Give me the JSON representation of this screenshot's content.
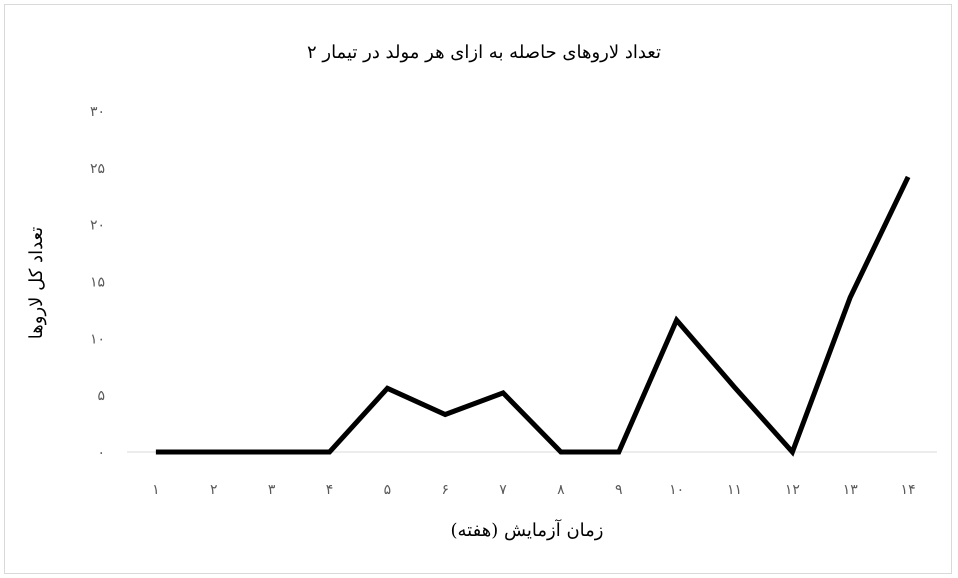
{
  "chart_data": {
    "type": "line",
    "title": "تعداد لاروهای حاصله به ازای هر مولد در تیمار ۲",
    "xlabel": "زمان آزمایش (هفته)",
    "ylabel": "تعداد کل لاروها",
    "categories": [
      "۱",
      "۲",
      "۳",
      "۴",
      "۵",
      "۶",
      "۷",
      "۸",
      "۹",
      "۱۰",
      "۱۱",
      "۱۲",
      "۱۳",
      "۱۴"
    ],
    "y_tick_labels": [
      "۰",
      "۵",
      "۱۰",
      "۱۵",
      "۲۰",
      "۲۵",
      "۳۰"
    ],
    "ylim": [
      0,
      30
    ],
    "series": [
      {
        "values": [
          0,
          0,
          0,
          0,
          5.6,
          3.3,
          5.2,
          0,
          0,
          11.6,
          5.7,
          0,
          13.6,
          24.2
        ]
      }
    ],
    "line_color": "#000000",
    "grid": false,
    "legend": "none"
  }
}
